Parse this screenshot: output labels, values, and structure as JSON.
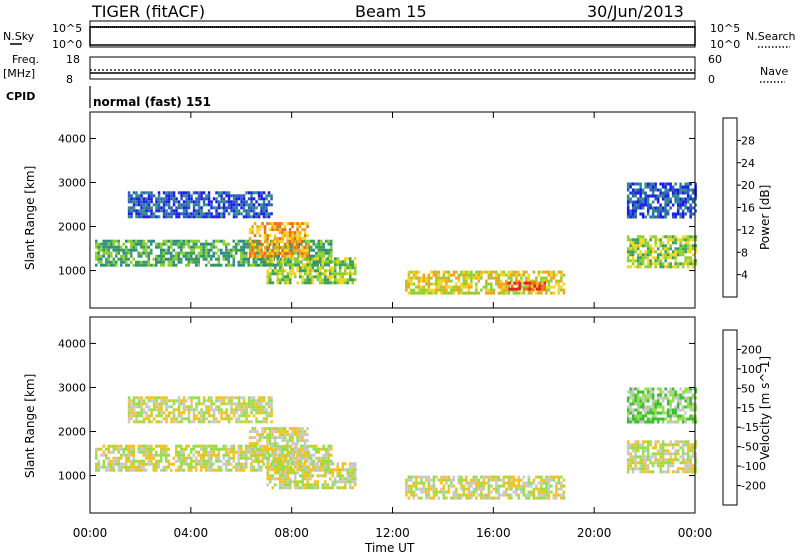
{
  "header": {
    "title": "TIGER (fitACF)",
    "beam": "Beam 15",
    "date": "30/Jun/2013"
  },
  "strips": {
    "nsky_label": "N.Sky",
    "nsky_ticks": [
      "10^5",
      "10^0"
    ],
    "nsearch_label": "N.Search",
    "nsearch_ticks": [
      "10^5",
      "10^0"
    ],
    "freq_label": "Freq.",
    "freq_unit": "[MHz]",
    "freq_ticks": [
      "18",
      "8"
    ],
    "nave_label": "Nave",
    "nave_ticks": [
      "60",
      "0"
    ],
    "cpid_label": "CPID",
    "cpid_value": "normal (fast) 151"
  },
  "chart_data": [
    {
      "type": "heatmap",
      "name": "power",
      "ylabel": "Slant Range [km]",
      "xlabel": "Time UT",
      "x_ticks": [
        "00:00",
        "04:00",
        "08:00",
        "12:00",
        "16:00",
        "20:00",
        "00:00"
      ],
      "x_range_hours": [
        0,
        24
      ],
      "y_ticks": [
        1000,
        2000,
        3000,
        4000
      ],
      "ylim": [
        150,
        4600
      ],
      "colorbar": {
        "label": "Power [dB]",
        "ticks": [
          "4",
          "8",
          "12",
          "16",
          "20",
          "24",
          "28"
        ],
        "colors": [
          "#1a1aee",
          "#2b5cb8",
          "#2e8b8b",
          "#3aa05a",
          "#8cd02f",
          "#f2d51c",
          "#f4a21a",
          "#ec6d18",
          "#e02020"
        ]
      },
      "bands": [
        {
          "t0": 0.2,
          "t1": 9.6,
          "r0": 1150,
          "r1": 1700,
          "level": 3
        },
        {
          "t0": 6.3,
          "t1": 8.6,
          "r0": 1300,
          "r1": 2100,
          "level": 6
        },
        {
          "t0": 7.0,
          "t1": 10.5,
          "r0": 700,
          "r1": 1300,
          "level": 4
        },
        {
          "t0": 1.5,
          "t1": 7.2,
          "r0": 2200,
          "r1": 2800,
          "level": 1
        },
        {
          "t0": 12.5,
          "t1": 18.8,
          "r0": 500,
          "r1": 1000,
          "level": 5
        },
        {
          "t0": 16.5,
          "t1": 18.0,
          "r0": 550,
          "r1": 750,
          "level": 8
        },
        {
          "t0": 21.3,
          "t1": 24.0,
          "r0": 1100,
          "r1": 1800,
          "level": 4
        },
        {
          "t0": 21.3,
          "t1": 24.0,
          "r0": 2200,
          "r1": 3000,
          "level": 1
        }
      ]
    },
    {
      "type": "heatmap",
      "name": "velocity",
      "ylabel": "Slant Range [km]",
      "xlabel": "Time UT",
      "x_ticks": [
        "00:00",
        "04:00",
        "08:00",
        "12:00",
        "16:00",
        "20:00",
        "00:00"
      ],
      "x_range_hours": [
        0,
        24
      ],
      "y_ticks": [
        1000,
        2000,
        3000,
        4000
      ],
      "ylim": [
        150,
        4600
      ],
      "colorbar": {
        "label": "Velocity [m s^-1]",
        "ticks": [
          "200",
          "100",
          "50",
          "15",
          "-15",
          "-50",
          "-100",
          "-200"
        ],
        "colors": [
          "#2a2ad8",
          "#2f7d3a",
          "#3bbd2f",
          "#8fe04a",
          "#c8c8c8",
          "#f4c21a",
          "#f0941a",
          "#ee6a18",
          "#e02020"
        ]
      },
      "bands": [
        {
          "t0": 0.2,
          "t1": 9.6,
          "r0": 1150,
          "r1": 1700,
          "level": 4
        },
        {
          "t0": 6.3,
          "t1": 8.6,
          "r0": 1300,
          "r1": 2100,
          "level": 4
        },
        {
          "t0": 7.0,
          "t1": 10.5,
          "r0": 700,
          "r1": 1300,
          "level": 4
        },
        {
          "t0": 1.5,
          "t1": 7.2,
          "r0": 2200,
          "r1": 2800,
          "level": 4
        },
        {
          "t0": 12.5,
          "t1": 18.8,
          "r0": 500,
          "r1": 1000,
          "level": 4
        },
        {
          "t0": 21.3,
          "t1": 24.0,
          "r0": 1100,
          "r1": 1800,
          "level": 4
        },
        {
          "t0": 21.3,
          "t1": 24.0,
          "r0": 2200,
          "r1": 3000,
          "level": 3
        }
      ]
    }
  ]
}
